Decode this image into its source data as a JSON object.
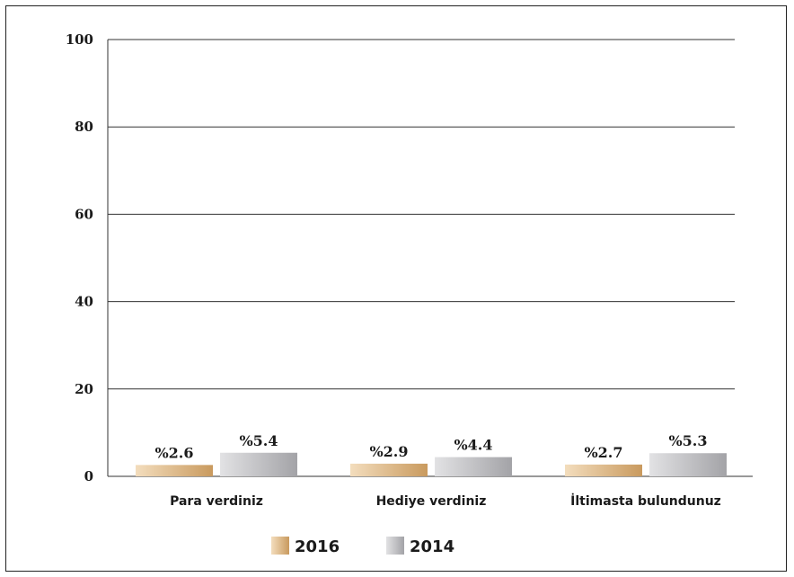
{
  "chart_data": {
    "type": "bar",
    "categories": [
      "Para verdiniz",
      "Hediye verdiniz",
      "İltimasta bulundunuz"
    ],
    "series": [
      {
        "name": "2016",
        "values": [
          2.6,
          2.9,
          2.7
        ],
        "labels": [
          "%2.6",
          "%2.9",
          "%2.7"
        ],
        "color": "#d9b07a"
      },
      {
        "name": "2014",
        "values": [
          5.4,
          4.4,
          5.3
        ],
        "labels": [
          "%5.4",
          "%4.4",
          "%5.3"
        ],
        "color": "#b5b5b8"
      }
    ],
    "yticks": [
      "0",
      "20",
      "40",
      "60",
      "80",
      "100"
    ],
    "ylim": [
      0,
      100
    ],
    "grid": true,
    "legend_position": "bottom-left"
  }
}
